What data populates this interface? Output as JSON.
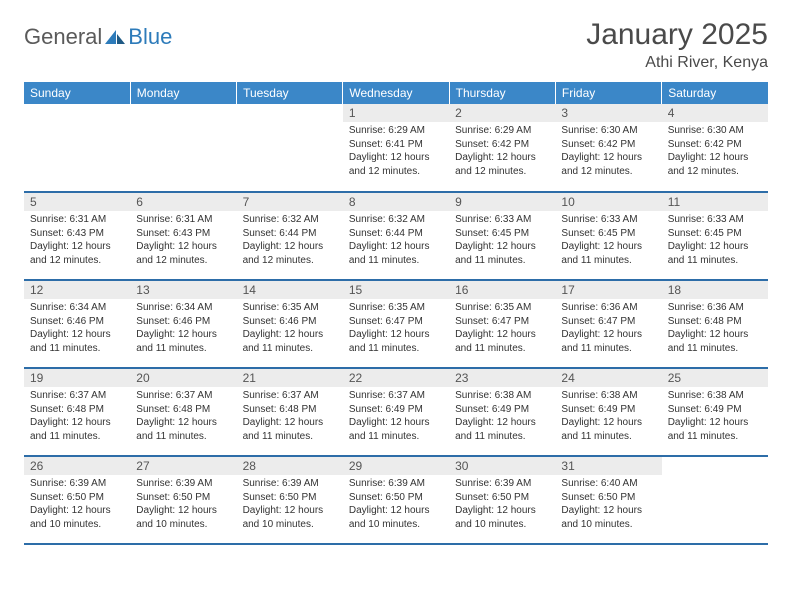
{
  "logo": {
    "text1": "General",
    "text2": "Blue",
    "color_general": "#5a5a5a",
    "color_blue": "#2d7bba"
  },
  "title": "January 2025",
  "location": "Athi River, Kenya",
  "header_bg": "#3b87c8",
  "header_fg": "#ffffff",
  "daynum_bg": "#ececec",
  "row_border": "#2d6da8",
  "text_color": "#333333",
  "title_color": "#4a4a4a",
  "font_title": 30,
  "font_location": 16,
  "font_header": 12,
  "font_daynum": 12,
  "font_info": 10,
  "weekdays": [
    "Sunday",
    "Monday",
    "Tuesday",
    "Wednesday",
    "Thursday",
    "Friday",
    "Saturday"
  ],
  "weeks": [
    [
      {
        "n": "",
        "sunrise": "",
        "sunset": "",
        "daylight": ""
      },
      {
        "n": "",
        "sunrise": "",
        "sunset": "",
        "daylight": ""
      },
      {
        "n": "",
        "sunrise": "",
        "sunset": "",
        "daylight": ""
      },
      {
        "n": "1",
        "sunrise": "Sunrise: 6:29 AM",
        "sunset": "Sunset: 6:41 PM",
        "daylight": "Daylight: 12 hours and 12 minutes."
      },
      {
        "n": "2",
        "sunrise": "Sunrise: 6:29 AM",
        "sunset": "Sunset: 6:42 PM",
        "daylight": "Daylight: 12 hours and 12 minutes."
      },
      {
        "n": "3",
        "sunrise": "Sunrise: 6:30 AM",
        "sunset": "Sunset: 6:42 PM",
        "daylight": "Daylight: 12 hours and 12 minutes."
      },
      {
        "n": "4",
        "sunrise": "Sunrise: 6:30 AM",
        "sunset": "Sunset: 6:42 PM",
        "daylight": "Daylight: 12 hours and 12 minutes."
      }
    ],
    [
      {
        "n": "5",
        "sunrise": "Sunrise: 6:31 AM",
        "sunset": "Sunset: 6:43 PM",
        "daylight": "Daylight: 12 hours and 12 minutes."
      },
      {
        "n": "6",
        "sunrise": "Sunrise: 6:31 AM",
        "sunset": "Sunset: 6:43 PM",
        "daylight": "Daylight: 12 hours and 12 minutes."
      },
      {
        "n": "7",
        "sunrise": "Sunrise: 6:32 AM",
        "sunset": "Sunset: 6:44 PM",
        "daylight": "Daylight: 12 hours and 12 minutes."
      },
      {
        "n": "8",
        "sunrise": "Sunrise: 6:32 AM",
        "sunset": "Sunset: 6:44 PM",
        "daylight": "Daylight: 12 hours and 11 minutes."
      },
      {
        "n": "9",
        "sunrise": "Sunrise: 6:33 AM",
        "sunset": "Sunset: 6:45 PM",
        "daylight": "Daylight: 12 hours and 11 minutes."
      },
      {
        "n": "10",
        "sunrise": "Sunrise: 6:33 AM",
        "sunset": "Sunset: 6:45 PM",
        "daylight": "Daylight: 12 hours and 11 minutes."
      },
      {
        "n": "11",
        "sunrise": "Sunrise: 6:33 AM",
        "sunset": "Sunset: 6:45 PM",
        "daylight": "Daylight: 12 hours and 11 minutes."
      }
    ],
    [
      {
        "n": "12",
        "sunrise": "Sunrise: 6:34 AM",
        "sunset": "Sunset: 6:46 PM",
        "daylight": "Daylight: 12 hours and 11 minutes."
      },
      {
        "n": "13",
        "sunrise": "Sunrise: 6:34 AM",
        "sunset": "Sunset: 6:46 PM",
        "daylight": "Daylight: 12 hours and 11 minutes."
      },
      {
        "n": "14",
        "sunrise": "Sunrise: 6:35 AM",
        "sunset": "Sunset: 6:46 PM",
        "daylight": "Daylight: 12 hours and 11 minutes."
      },
      {
        "n": "15",
        "sunrise": "Sunrise: 6:35 AM",
        "sunset": "Sunset: 6:47 PM",
        "daylight": "Daylight: 12 hours and 11 minutes."
      },
      {
        "n": "16",
        "sunrise": "Sunrise: 6:35 AM",
        "sunset": "Sunset: 6:47 PM",
        "daylight": "Daylight: 12 hours and 11 minutes."
      },
      {
        "n": "17",
        "sunrise": "Sunrise: 6:36 AM",
        "sunset": "Sunset: 6:47 PM",
        "daylight": "Daylight: 12 hours and 11 minutes."
      },
      {
        "n": "18",
        "sunrise": "Sunrise: 6:36 AM",
        "sunset": "Sunset: 6:48 PM",
        "daylight": "Daylight: 12 hours and 11 minutes."
      }
    ],
    [
      {
        "n": "19",
        "sunrise": "Sunrise: 6:37 AM",
        "sunset": "Sunset: 6:48 PM",
        "daylight": "Daylight: 12 hours and 11 minutes."
      },
      {
        "n": "20",
        "sunrise": "Sunrise: 6:37 AM",
        "sunset": "Sunset: 6:48 PM",
        "daylight": "Daylight: 12 hours and 11 minutes."
      },
      {
        "n": "21",
        "sunrise": "Sunrise: 6:37 AM",
        "sunset": "Sunset: 6:48 PM",
        "daylight": "Daylight: 12 hours and 11 minutes."
      },
      {
        "n": "22",
        "sunrise": "Sunrise: 6:37 AM",
        "sunset": "Sunset: 6:49 PM",
        "daylight": "Daylight: 12 hours and 11 minutes."
      },
      {
        "n": "23",
        "sunrise": "Sunrise: 6:38 AM",
        "sunset": "Sunset: 6:49 PM",
        "daylight": "Daylight: 12 hours and 11 minutes."
      },
      {
        "n": "24",
        "sunrise": "Sunrise: 6:38 AM",
        "sunset": "Sunset: 6:49 PM",
        "daylight": "Daylight: 12 hours and 11 minutes."
      },
      {
        "n": "25",
        "sunrise": "Sunrise: 6:38 AM",
        "sunset": "Sunset: 6:49 PM",
        "daylight": "Daylight: 12 hours and 11 minutes."
      }
    ],
    [
      {
        "n": "26",
        "sunrise": "Sunrise: 6:39 AM",
        "sunset": "Sunset: 6:50 PM",
        "daylight": "Daylight: 12 hours and 10 minutes."
      },
      {
        "n": "27",
        "sunrise": "Sunrise: 6:39 AM",
        "sunset": "Sunset: 6:50 PM",
        "daylight": "Daylight: 12 hours and 10 minutes."
      },
      {
        "n": "28",
        "sunrise": "Sunrise: 6:39 AM",
        "sunset": "Sunset: 6:50 PM",
        "daylight": "Daylight: 12 hours and 10 minutes."
      },
      {
        "n": "29",
        "sunrise": "Sunrise: 6:39 AM",
        "sunset": "Sunset: 6:50 PM",
        "daylight": "Daylight: 12 hours and 10 minutes."
      },
      {
        "n": "30",
        "sunrise": "Sunrise: 6:39 AM",
        "sunset": "Sunset: 6:50 PM",
        "daylight": "Daylight: 12 hours and 10 minutes."
      },
      {
        "n": "31",
        "sunrise": "Sunrise: 6:40 AM",
        "sunset": "Sunset: 6:50 PM",
        "daylight": "Daylight: 12 hours and 10 minutes."
      },
      {
        "n": "",
        "sunrise": "",
        "sunset": "",
        "daylight": ""
      }
    ]
  ]
}
